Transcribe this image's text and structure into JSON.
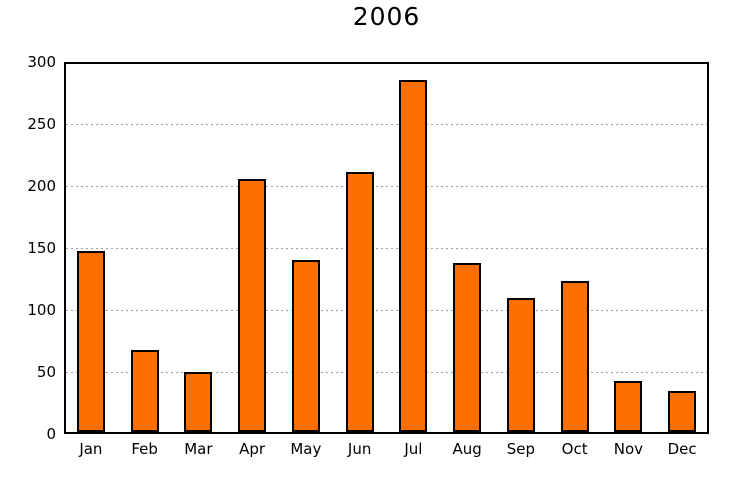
{
  "chart_data": {
    "type": "bar",
    "title": "2006",
    "categories": [
      "Jan",
      "Feb",
      "Mar",
      "Apr",
      "May",
      "Jun",
      "Jul",
      "Aug",
      "Sep",
      "Oct",
      "Nov",
      "Dec"
    ],
    "values": [
      146,
      66,
      48,
      204,
      139,
      210,
      284,
      136,
      108,
      122,
      41,
      33
    ],
    "xlabel": "",
    "ylabel": "",
    "ylim": [
      0,
      300
    ],
    "yticks": [
      0,
      50,
      100,
      150,
      200,
      250,
      300
    ],
    "grid": "horizontal-dotted",
    "legend_position": "none",
    "colors": {
      "bar_fill": "#ff6e00",
      "bar_edge": "#000000",
      "grid_line": "#a0a0a0",
      "axis_box": "#000000",
      "background": "#ffffff",
      "text": "#000000"
    }
  }
}
